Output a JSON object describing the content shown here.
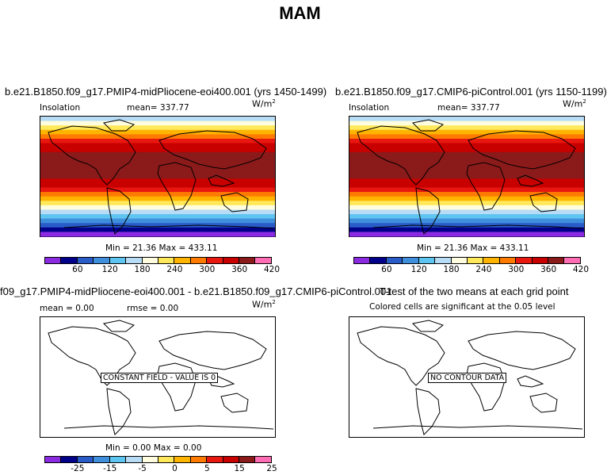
{
  "title": "MAM",
  "units": "W/m",
  "units_sup": "2",
  "panels": {
    "tl": {
      "title": "b.e21.B1850.f09_g17.PMIP4-midPliocene-eoi400.001 (yrs 1450-1499)",
      "left_label": "Insolation",
      "mean_text": "mean= 337.77",
      "minmax_text": "Min =  21.36 Max = 433.11"
    },
    "tr": {
      "title": "b.e21.B1850.f09_g17.CMIP6-piControl.001 (yrs 1150-1199)",
      "left_label": "Insolation",
      "mean_text": "mean= 337.77",
      "minmax_text": "Min =  21.36 Max = 433.11"
    },
    "bl": {
      "title": "f09_g17.PMIP4-midPliocene-eoi400.001 - b.e21.B1850.f09_g17.CMIP6-piControl.001",
      "mean_text": "mean =    0.00",
      "rmse_text": "rmse =    0.00",
      "notice": "CONSTANT FIELD - VALUE IS 0",
      "minmax_text": "Min =    0.00 Max =    0.00"
    },
    "br": {
      "title": "T-test of the two means at each grid point",
      "subtitle": "Colored cells are significant at the 0.05 level",
      "notice": "NO CONTOUR DATA"
    }
  },
  "colors": [
    "#8a2be2",
    "#00008b",
    "#2a5cc9",
    "#3f8fdc",
    "#5ec4f0",
    "#b8dcf5",
    "#fffde0",
    "#ffe85a",
    "#ffb400",
    "#ff7a00",
    "#e8170f",
    "#c80000",
    "#8b1a1a",
    "#ff6eb4"
  ],
  "chart_data": [
    {
      "type": "heatmap",
      "title": "b.e21.B1850.f09_g17.PMIP4-midPliocene-eoi400.001 (yrs 1450-1499)",
      "variable": "Insolation",
      "units": "W/m2",
      "mean": 337.77,
      "min": 21.36,
      "max": 433.11,
      "colorbar_levels": [
        30,
        60,
        90,
        120,
        150,
        180,
        210,
        240,
        270,
        300,
        330,
        360,
        390,
        420
      ],
      "colorbar_tick_labels": [
        "60",
        "120",
        "180",
        "240",
        "300",
        "360",
        "420"
      ],
      "zonal_profile_bands_north_to_south": [
        5,
        6,
        7,
        8,
        9,
        10,
        11,
        11,
        12,
        12,
        12,
        12,
        12,
        12,
        11,
        11,
        10,
        9,
        8,
        7,
        6,
        5,
        4,
        3,
        2,
        1,
        0
      ]
    },
    {
      "type": "heatmap",
      "title": "b.e21.B1850.f09_g17.CMIP6-piControl.001 (yrs 1150-1199)",
      "variable": "Insolation",
      "units": "W/m2",
      "mean": 337.77,
      "min": 21.36,
      "max": 433.11,
      "colorbar_levels": [
        30,
        60,
        90,
        120,
        150,
        180,
        210,
        240,
        270,
        300,
        330,
        360,
        390,
        420
      ],
      "colorbar_tick_labels": [
        "60",
        "120",
        "180",
        "240",
        "300",
        "360",
        "420"
      ],
      "zonal_profile_bands_north_to_south": [
        5,
        6,
        7,
        8,
        9,
        10,
        11,
        11,
        12,
        12,
        12,
        12,
        12,
        12,
        11,
        11,
        10,
        9,
        8,
        7,
        6,
        5,
        4,
        3,
        2,
        1,
        0
      ]
    },
    {
      "type": "heatmap",
      "title": "f09_g17.PMIP4-midPliocene-eoi400.001 - b.e21.B1850.f09_g17.CMIP6-piControl.001",
      "units": "W/m2",
      "mean": 0.0,
      "rmse": 0.0,
      "min": 0.0,
      "max": 0.0,
      "annotation": "CONSTANT FIELD - VALUE IS 0",
      "colorbar_tick_labels": [
        "-25",
        "-15",
        "-5",
        "0",
        "5",
        "15",
        "25"
      ]
    },
    {
      "type": "heatmap",
      "title": "T-test of the two means at each grid point",
      "subtitle": "Colored cells are significant at the 0.05 level",
      "annotation": "NO CONTOUR DATA"
    }
  ]
}
